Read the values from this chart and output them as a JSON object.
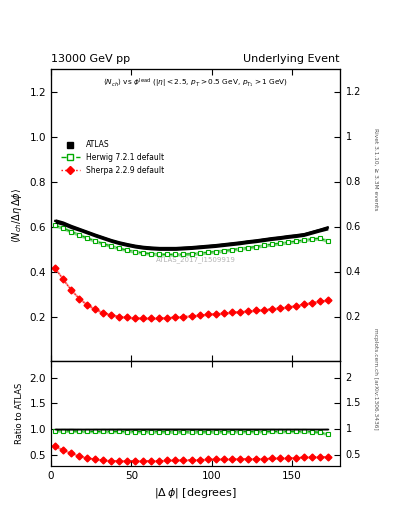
{
  "title_left": "13000 GeV pp",
  "title_right": "Underlying Event",
  "subtitle": "<N_{ch}> vs #phi^{lead} (|#eta| < 2.5, p_{T} > 0.5 GeV, p_{T_1} > 1 GeV)",
  "ylabel_main": "<N_{ch} / Δη deltaφ>",
  "ylabel_ratio": "Ratio to ATLAS",
  "xlabel": "|Δ φ| [degrees]",
  "watermark": "ATLAS_2017_I1509919",
  "right_label_top": "Rivet 3.1.10, ≥ 3.3M events",
  "right_label_bottom": "mcplots.cern.ch [arXiv:1306.3436]",
  "atlas_x": [
    2.5,
    7.5,
    12.5,
    17.5,
    22.5,
    27.5,
    32.5,
    37.5,
    42.5,
    47.5,
    52.5,
    57.5,
    62.5,
    67.5,
    72.5,
    77.5,
    82.5,
    87.5,
    92.5,
    97.5,
    102.5,
    107.5,
    112.5,
    117.5,
    122.5,
    127.5,
    132.5,
    137.5,
    142.5,
    147.5,
    152.5,
    157.5,
    162.5,
    167.5,
    172.5
  ],
  "atlas_y": [
    0.625,
    0.615,
    0.6,
    0.588,
    0.575,
    0.562,
    0.55,
    0.538,
    0.528,
    0.52,
    0.513,
    0.508,
    0.505,
    0.503,
    0.503,
    0.503,
    0.505,
    0.507,
    0.51,
    0.513,
    0.516,
    0.52,
    0.524,
    0.528,
    0.533,
    0.537,
    0.542,
    0.547,
    0.551,
    0.556,
    0.56,
    0.565,
    0.575,
    0.585,
    0.595
  ],
  "atlas_err": [
    0.01,
    0.01,
    0.01,
    0.009,
    0.009,
    0.009,
    0.009,
    0.009,
    0.009,
    0.009,
    0.009,
    0.009,
    0.009,
    0.009,
    0.009,
    0.009,
    0.009,
    0.009,
    0.009,
    0.009,
    0.009,
    0.009,
    0.009,
    0.009,
    0.009,
    0.009,
    0.009,
    0.009,
    0.009,
    0.009,
    0.009,
    0.009,
    0.009,
    0.009,
    0.01
  ],
  "herwig_x": [
    2.5,
    7.5,
    12.5,
    17.5,
    22.5,
    27.5,
    32.5,
    37.5,
    42.5,
    47.5,
    52.5,
    57.5,
    62.5,
    67.5,
    72.5,
    77.5,
    82.5,
    87.5,
    92.5,
    97.5,
    102.5,
    107.5,
    112.5,
    117.5,
    122.5,
    127.5,
    132.5,
    137.5,
    142.5,
    147.5,
    152.5,
    157.5,
    162.5,
    167.5,
    172.5
  ],
  "herwig_y": [
    0.605,
    0.593,
    0.578,
    0.563,
    0.549,
    0.536,
    0.524,
    0.513,
    0.503,
    0.495,
    0.488,
    0.483,
    0.479,
    0.477,
    0.476,
    0.476,
    0.477,
    0.479,
    0.482,
    0.485,
    0.489,
    0.493,
    0.497,
    0.502,
    0.506,
    0.511,
    0.516,
    0.521,
    0.526,
    0.53,
    0.535,
    0.54,
    0.545,
    0.548,
    0.535
  ],
  "herwig_err": [
    0.005,
    0.005,
    0.005,
    0.005,
    0.005,
    0.005,
    0.005,
    0.005,
    0.005,
    0.005,
    0.005,
    0.005,
    0.005,
    0.005,
    0.005,
    0.005,
    0.005,
    0.005,
    0.005,
    0.005,
    0.005,
    0.005,
    0.005,
    0.005,
    0.005,
    0.005,
    0.005,
    0.005,
    0.005,
    0.005,
    0.005,
    0.005,
    0.005,
    0.005,
    0.005
  ],
  "sherpa_x": [
    2.5,
    7.5,
    12.5,
    17.5,
    22.5,
    27.5,
    32.5,
    37.5,
    42.5,
    47.5,
    52.5,
    57.5,
    62.5,
    67.5,
    72.5,
    77.5,
    82.5,
    87.5,
    92.5,
    97.5,
    102.5,
    107.5,
    112.5,
    117.5,
    122.5,
    127.5,
    132.5,
    137.5,
    142.5,
    147.5,
    152.5,
    157.5,
    162.5,
    167.5,
    172.5
  ],
  "sherpa_y": [
    0.415,
    0.365,
    0.318,
    0.28,
    0.252,
    0.232,
    0.217,
    0.207,
    0.2,
    0.196,
    0.193,
    0.192,
    0.192,
    0.193,
    0.195,
    0.197,
    0.2,
    0.203,
    0.206,
    0.209,
    0.212,
    0.215,
    0.218,
    0.221,
    0.224,
    0.227,
    0.23,
    0.234,
    0.238,
    0.242,
    0.248,
    0.255,
    0.262,
    0.268,
    0.273
  ],
  "sherpa_err": [
    0.003,
    0.003,
    0.003,
    0.003,
    0.003,
    0.003,
    0.003,
    0.003,
    0.003,
    0.003,
    0.003,
    0.003,
    0.003,
    0.003,
    0.003,
    0.003,
    0.003,
    0.003,
    0.003,
    0.003,
    0.003,
    0.003,
    0.003,
    0.003,
    0.003,
    0.003,
    0.003,
    0.003,
    0.003,
    0.003,
    0.003,
    0.003,
    0.003,
    0.003,
    0.003
  ],
  "atlas_color": "#000000",
  "herwig_color": "#00aa00",
  "sherpa_color": "#ff0000",
  "ylim_main": [
    0.0,
    1.3
  ],
  "ylim_ratio": [
    0.28,
    2.32
  ],
  "xlim": [
    0,
    180
  ],
  "yticks_main": [
    0.2,
    0.4,
    0.6,
    0.8,
    1.0,
    1.2
  ],
  "yticks_ratio": [
    0.5,
    1.0,
    1.5,
    2.0
  ],
  "xticks": [
    0,
    50,
    100,
    150
  ]
}
